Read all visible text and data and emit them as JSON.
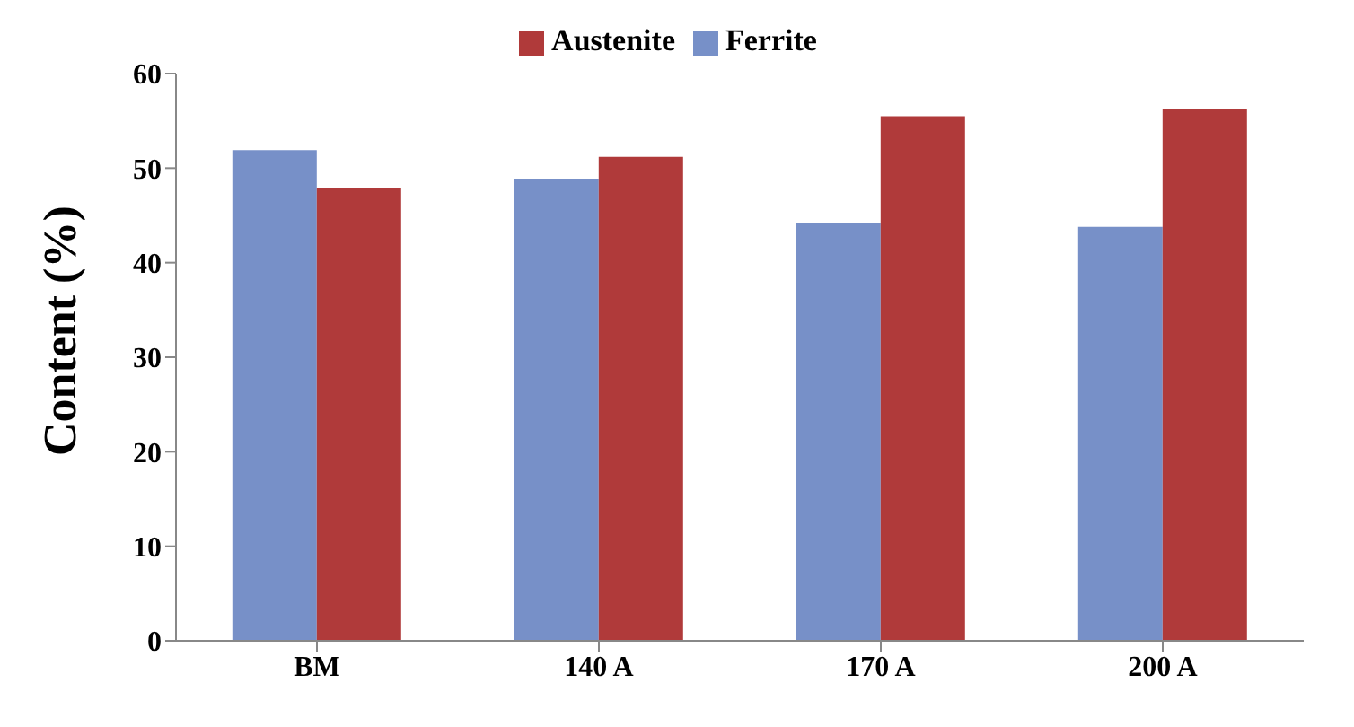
{
  "chart_data": {
    "type": "bar",
    "ylabel": "Content (%)",
    "categories": [
      "BM",
      "140 A",
      "170 A",
      "200 A"
    ],
    "series": [
      {
        "name": "Ferrite",
        "color": "#7790c8",
        "values": [
          51.9,
          48.9,
          44.2,
          43.8
        ]
      },
      {
        "name": "Austenite",
        "color": "#b03a3a",
        "values": [
          47.9,
          51.2,
          55.5,
          56.2
        ]
      }
    ],
    "ylim": [
      0,
      60
    ],
    "yticks": [
      0,
      10,
      20,
      30,
      40,
      50,
      60
    ],
    "grid": false,
    "legend": "top"
  }
}
